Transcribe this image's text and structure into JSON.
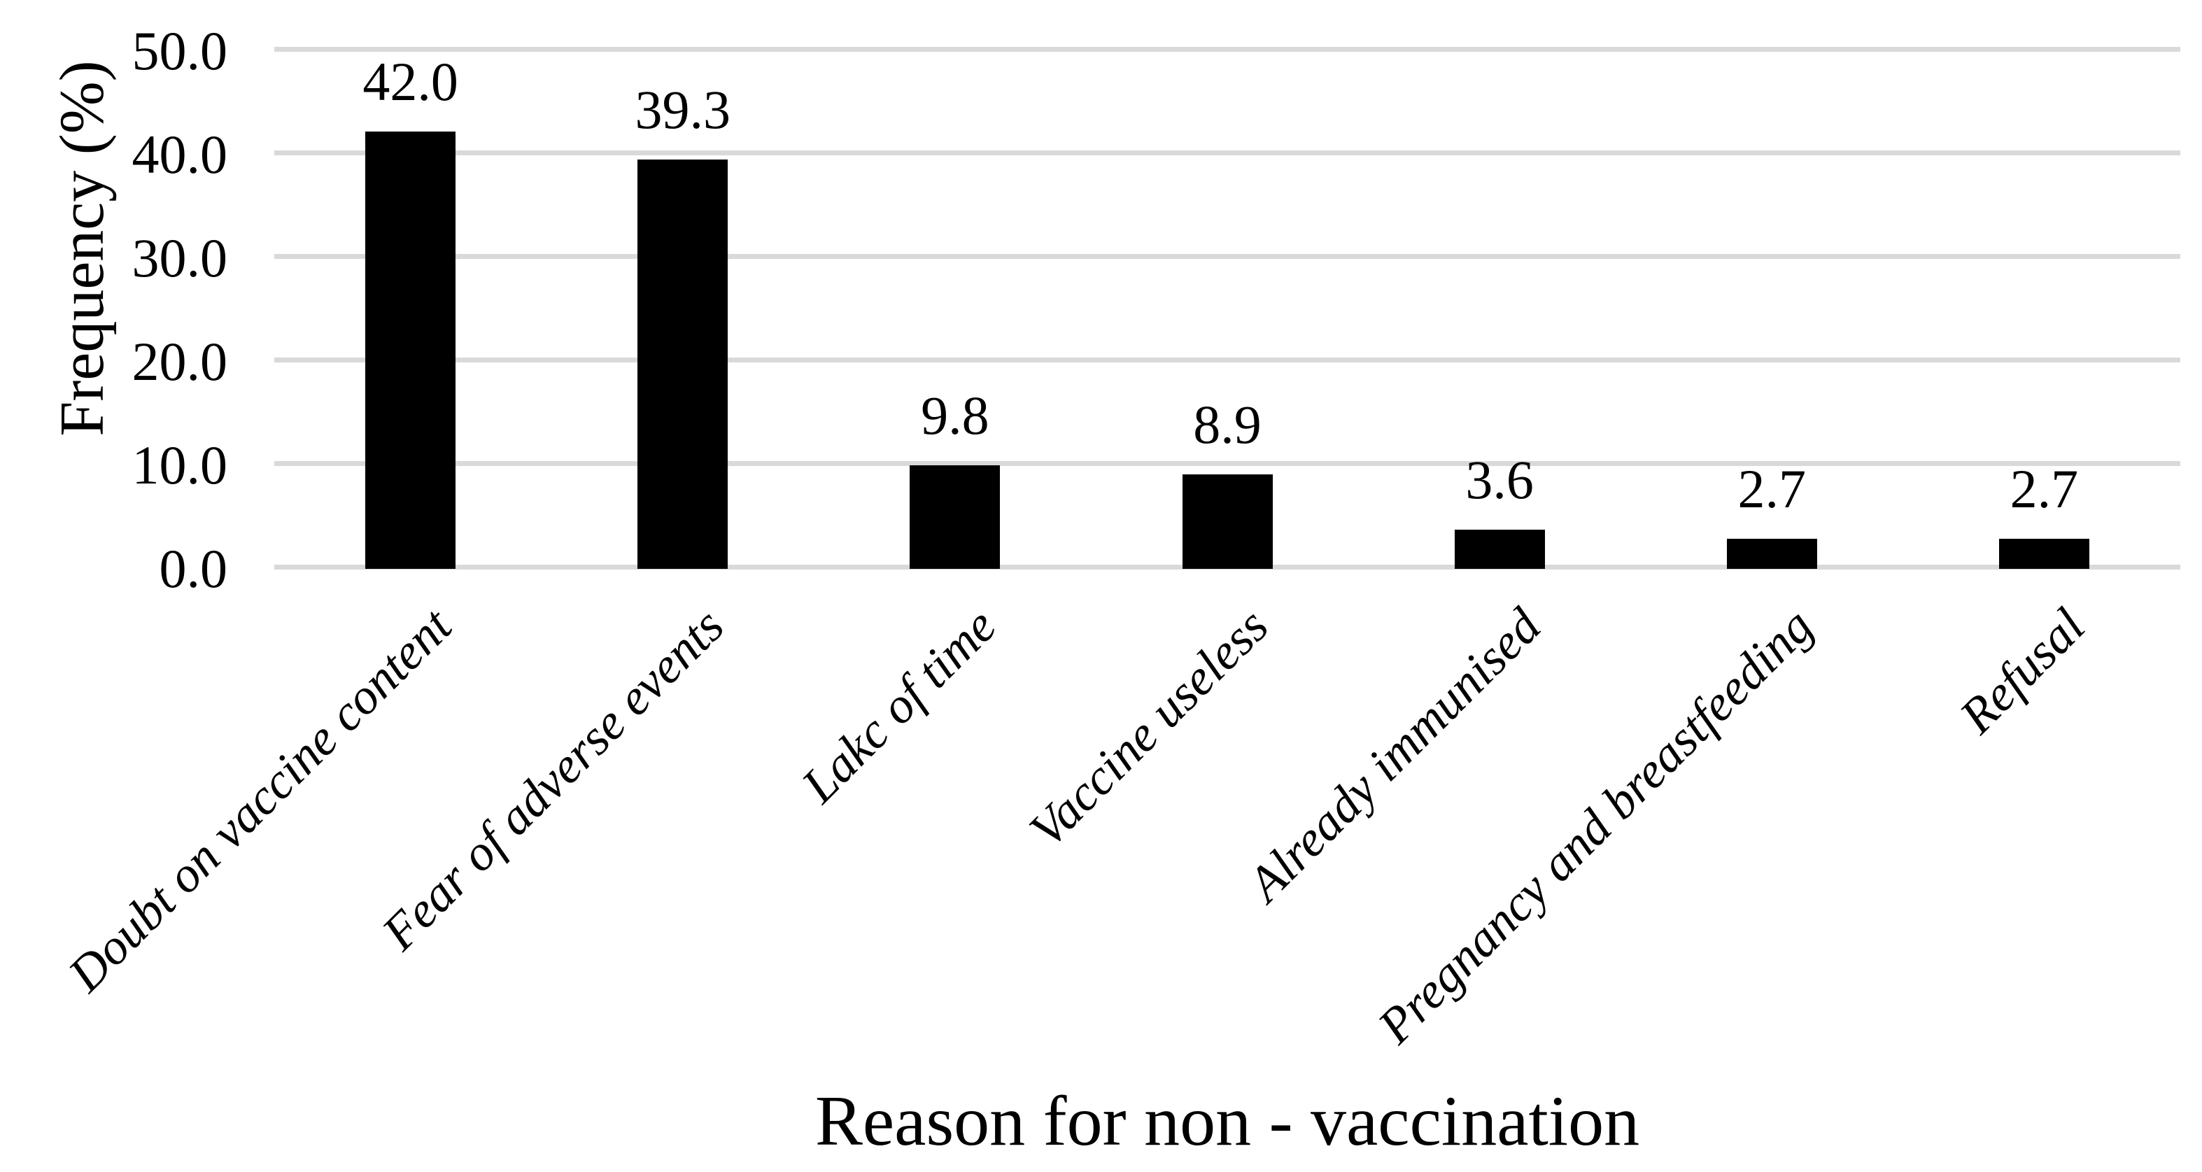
{
  "chart_data": {
    "type": "bar",
    "title": "",
    "xlabel": "Reason for non - vaccination",
    "ylabel": "Frequency (%)",
    "categories": [
      "Doubt on vaccine content",
      "Fear of adverse events",
      "Lakc of time",
      "Vaccine useless",
      "Already immunised",
      "Pregnancy and breastfeeding",
      "Refusal"
    ],
    "values": [
      42.0,
      39.3,
      9.8,
      8.9,
      3.6,
      2.7,
      2.7
    ],
    "value_labels": [
      "42.0",
      "39.3",
      "9.8",
      "8.9",
      "3.6",
      "2.7",
      "2.7"
    ],
    "y_ticks": [
      "0.0",
      "10.0",
      "20.0",
      "30.0",
      "40.0",
      "50.0"
    ],
    "ylim": [
      0,
      50
    ],
    "grid": true,
    "legend_position": "none",
    "bar_color": "#000000",
    "gridline_color": "#d9d9d9",
    "background_color": "#ffffff",
    "text_color": "#000000"
  }
}
